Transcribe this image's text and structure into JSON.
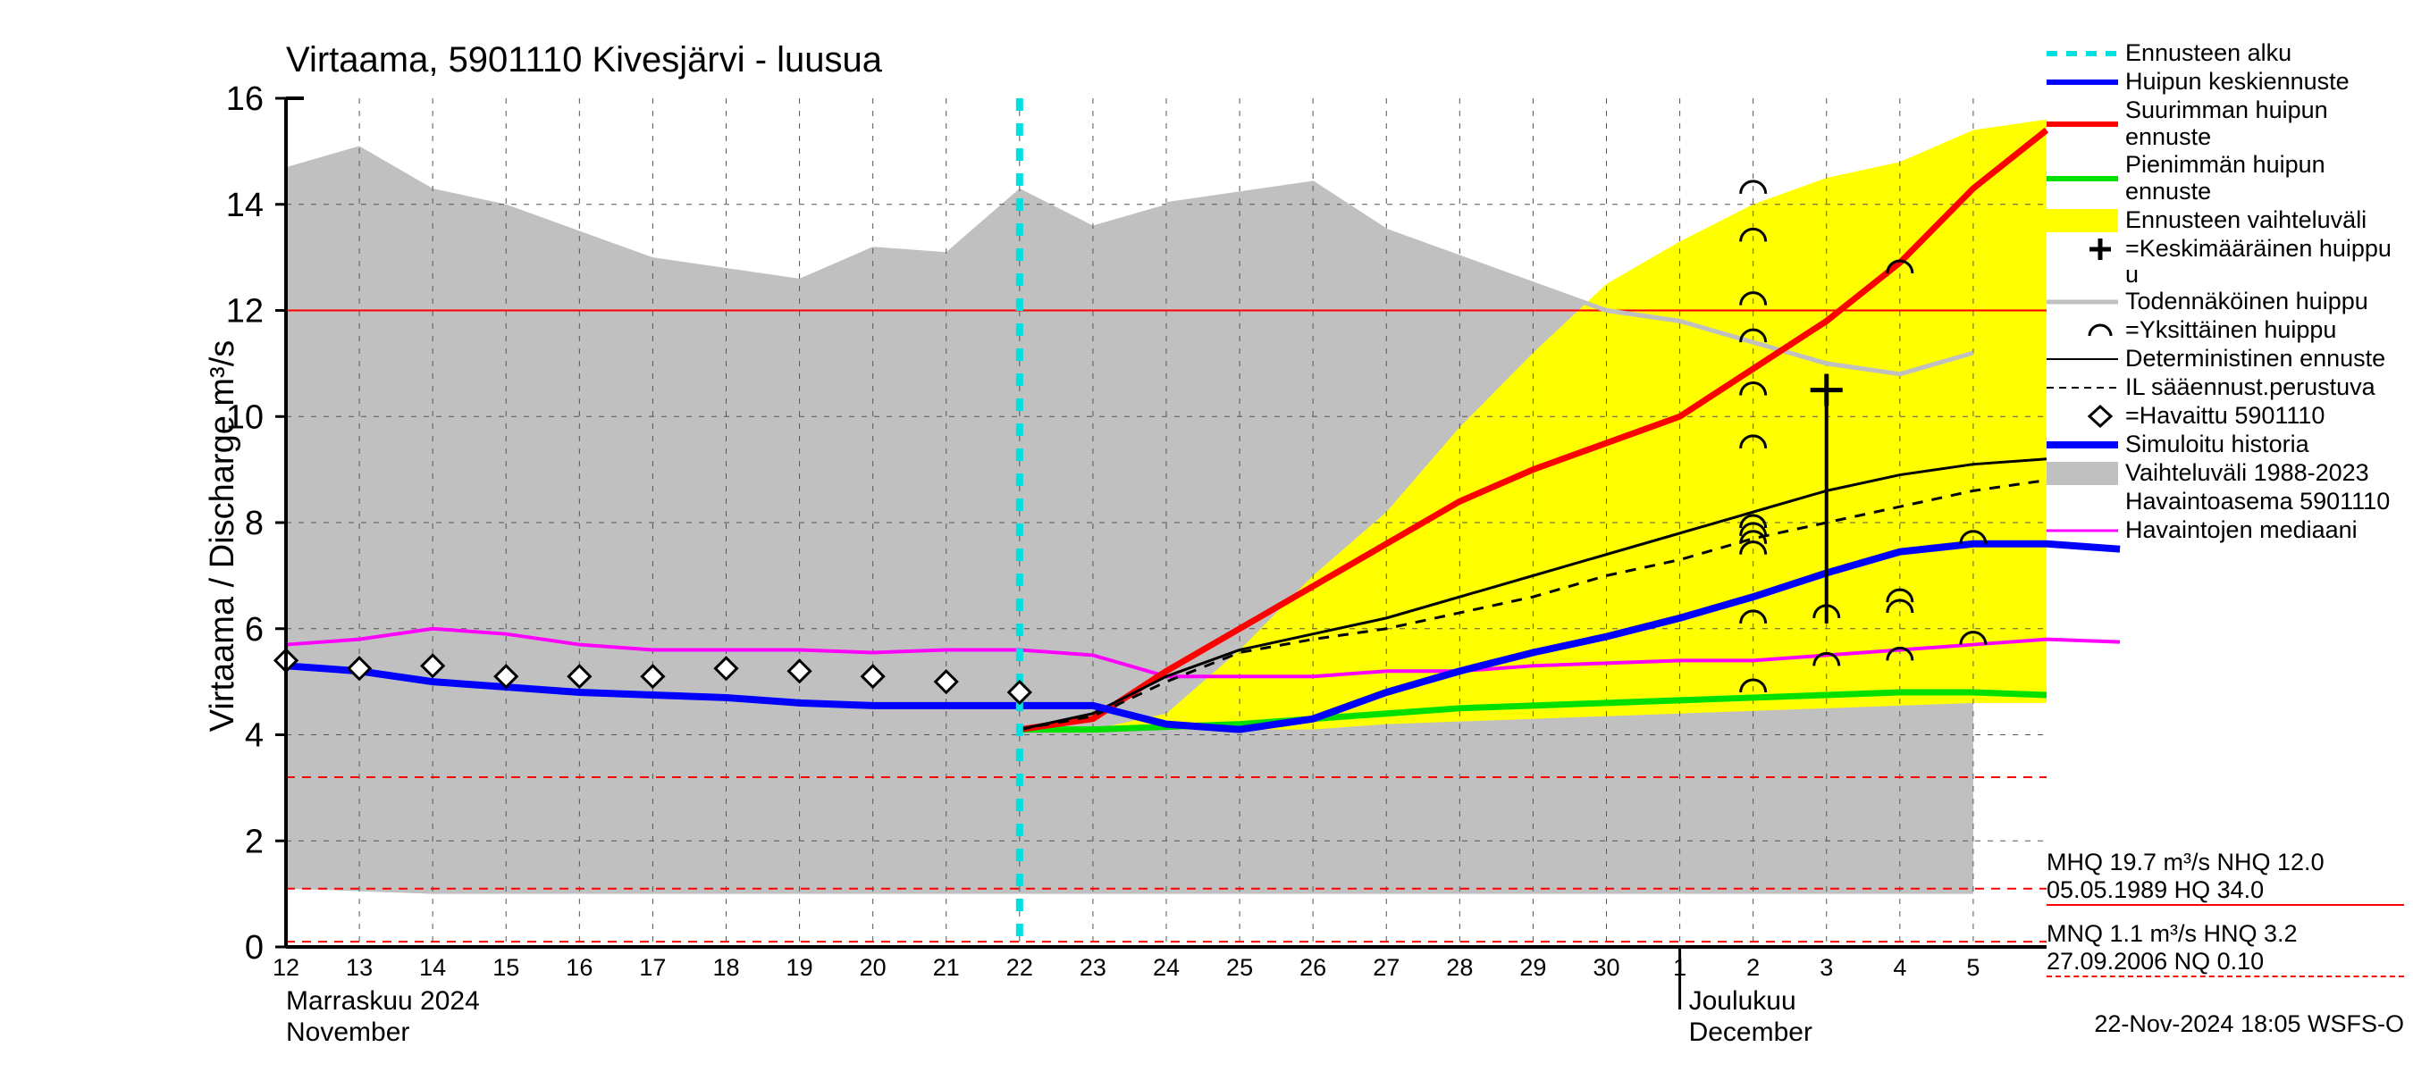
{
  "title": "Virtaama, 5901110 Kivesjärvi - luusua",
  "y_axis_label": "Virtaama / Discharge    m³/s",
  "footer": "22-Nov-2024 18:05 WSFS-O",
  "title_fontsize": 40,
  "axis_tick_fontsize": 38,
  "date_tick_fontsize": 27,
  "month_fontsize": 30,
  "legend_fontsize": 27,
  "colors": {
    "grid": "#000000",
    "background": "#ffffff",
    "gray_band": "#c0c0c0",
    "yellow_band": "#ffff00",
    "blue_thick": "#0000ff",
    "red_thick": "#ff0000",
    "green_thick": "#00e000",
    "magenta": "#ff00ff",
    "cyan": "#00e0e0",
    "light_gray_line": "#c0c0c0",
    "red_thin": "#ff0000",
    "black": "#000000"
  },
  "plot": {
    "x_days_start": 12,
    "x_days_end": 36,
    "ylim": [
      0,
      16
    ],
    "yticks": [
      0,
      2,
      4,
      6,
      8,
      10,
      12,
      14,
      16
    ],
    "day_labels": [
      "12",
      "13",
      "14",
      "15",
      "16",
      "17",
      "18",
      "19",
      "20",
      "21",
      "22",
      "23",
      "24",
      "25",
      "26",
      "27",
      "28",
      "29",
      "30",
      "1",
      "2",
      "3",
      "4",
      "5"
    ],
    "month_label_1_fi": "Marraskuu 2024",
    "month_label_1_en": "November",
    "month_label_2_fi": "Joulukuu",
    "month_label_2_en": "December",
    "month_sep_day": 31,
    "forecast_start_day": 22,
    "gray_upper": [
      14.7,
      15.1,
      14.3,
      14.0,
      13.5,
      13.0,
      12.8,
      12.6,
      13.2,
      13.1,
      14.3,
      13.6,
      14.0,
      14.2,
      14.4,
      13.5,
      13.0,
      12.5,
      12.0,
      11.8,
      11.4,
      11.0,
      10.8,
      11.2
    ],
    "gray_lower": [
      1.1,
      1.05,
      1.0,
      1.0,
      1.0,
      1.0,
      1.0,
      1.0,
      1.0,
      1.0,
      1.0,
      1.0,
      1.0,
      1.0,
      1.0,
      1.0,
      1.0,
      1.0,
      1.0,
      1.0,
      1.0,
      1.0,
      1.0,
      1.0
    ],
    "yellow_upper": [
      4.1,
      4.4,
      5.6,
      7.0,
      8.2,
      9.8,
      11.2,
      12.5,
      13.3,
      14.0,
      14.5,
      14.8,
      15.4,
      15.6
    ],
    "yellow_lower": [
      4.1,
      4.1,
      4.1,
      4.1,
      4.2,
      4.25,
      4.3,
      4.35,
      4.4,
      4.45,
      4.5,
      4.55,
      4.6,
      4.6
    ],
    "red_line": [
      4.1,
      4.3,
      5.2,
      6.0,
      6.8,
      7.6,
      8.4,
      9.0,
      9.5,
      10.0,
      10.9,
      11.8,
      12.9,
      14.3,
      15.4
    ],
    "blue_line": [
      5.3,
      5.2,
      5.0,
      4.9,
      4.8,
      4.75,
      4.7,
      4.6,
      4.55,
      4.55,
      4.55,
      4.55,
      4.2,
      4.1,
      4.3,
      4.8,
      5.2,
      5.55,
      5.85,
      6.2,
      6.6,
      7.05,
      7.45,
      7.6,
      7.6,
      7.5
    ],
    "green_line": [
      4.1,
      4.1,
      4.15,
      4.2,
      4.3,
      4.4,
      4.5,
      4.55,
      4.6,
      4.65,
      4.7,
      4.75,
      4.8,
      4.8,
      4.75
    ],
    "magenta_line": [
      5.7,
      5.8,
      6.0,
      5.9,
      5.7,
      5.6,
      5.6,
      5.6,
      5.55,
      5.6,
      5.6,
      5.5,
      5.1,
      5.1,
      5.1,
      5.2,
      5.2,
      5.3,
      5.35,
      5.4,
      5.4,
      5.5,
      5.6,
      5.7,
      5.8,
      5.75
    ],
    "black_solid": [
      4.1,
      4.4,
      5.1,
      5.6,
      5.9,
      6.2,
      6.6,
      7.0,
      7.4,
      7.8,
      8.2,
      8.6,
      8.9,
      9.1,
      9.2
    ],
    "black_dashed": [
      4.1,
      4.35,
      5.0,
      5.55,
      5.8,
      6.0,
      6.3,
      6.6,
      7.0,
      7.3,
      7.7,
      8.0,
      8.3,
      8.6,
      8.8
    ],
    "observed": [
      {
        "d": 12,
        "v": 5.4
      },
      {
        "d": 13,
        "v": 5.25
      },
      {
        "d": 14,
        "v": 5.3
      },
      {
        "d": 15,
        "v": 5.1
      },
      {
        "d": 16,
        "v": 5.1
      },
      {
        "d": 17,
        "v": 5.1
      },
      {
        "d": 18,
        "v": 5.25
      },
      {
        "d": 19,
        "v": 5.2
      },
      {
        "d": 20,
        "v": 5.1
      },
      {
        "d": 21,
        "v": 5.0
      },
      {
        "d": 22,
        "v": 4.8
      }
    ],
    "peak_arcs": [
      {
        "d": 32,
        "v": 14.2
      },
      {
        "d": 32,
        "v": 13.3
      },
      {
        "d": 32,
        "v": 12.1
      },
      {
        "d": 32,
        "v": 11.4
      },
      {
        "d": 32,
        "v": 10.4
      },
      {
        "d": 32,
        "v": 9.4
      },
      {
        "d": 32,
        "v": 7.9
      },
      {
        "d": 32,
        "v": 7.75
      },
      {
        "d": 32,
        "v": 7.6
      },
      {
        "d": 32,
        "v": 7.4
      },
      {
        "d": 32,
        "v": 6.1
      },
      {
        "d": 32,
        "v": 4.8
      },
      {
        "d": 33,
        "v": 5.3
      },
      {
        "d": 33,
        "v": 6.2
      },
      {
        "d": 34,
        "v": 12.7
      },
      {
        "d": 34,
        "v": 5.4
      },
      {
        "d": 34,
        "v": 6.3
      },
      {
        "d": 34,
        "v": 6.5
      },
      {
        "d": 35,
        "v": 5.7
      },
      {
        "d": 35,
        "v": 7.6
      }
    ],
    "plus_marker": {
      "d": 33,
      "v": 10.5
    },
    "plus_stem_to": 6.1,
    "mhq_line": 12.0,
    "mnq_line": 1.1,
    "nq_dash": 1.2,
    "extra_red_dash": 3.2
  },
  "legend": [
    {
      "key": "forecast_start",
      "label": "Ennusteen alku",
      "type": "dash",
      "color": "#00e0e0",
      "width": 6
    },
    {
      "key": "peak_mean",
      "label": "Huipun keskiennuste",
      "type": "line",
      "color": "#0000ff",
      "width": 6
    },
    {
      "key": "peak_max",
      "label": "Suurimman huipun ennuste",
      "type": "line",
      "color": "#ff0000",
      "width": 6
    },
    {
      "key": "peak_min",
      "label": "Pienimmän huipun ennuste",
      "type": "line",
      "color": "#00e000",
      "width": 6
    },
    {
      "key": "range",
      "label": "Ennusteen vaihteluväli",
      "type": "band",
      "color": "#ffff00"
    },
    {
      "key": "mean_peak_sym",
      "label": "=Keskimääräinen huippu",
      "type": "plus",
      "color": "#000000"
    },
    {
      "key": "prob_peak",
      "label": "Todennäköinen huippu",
      "type": "line",
      "color": "#c0c0c0",
      "width": 5
    },
    {
      "key": "single_peak",
      "label": "=Yksittäinen huippu",
      "type": "arc",
      "color": "#000000"
    },
    {
      "key": "det_forecast",
      "label": "Deterministinen ennuste",
      "type": "line",
      "color": "#000000",
      "width": 2
    },
    {
      "key": "il_forecast",
      "label": "IL sääennust.perustuva",
      "type": "sdash",
      "color": "#000000",
      "width": 2
    },
    {
      "key": "observed",
      "label": "=Havaittu 5901110",
      "type": "diamond",
      "color": "#000000"
    },
    {
      "key": "sim_hist",
      "label": "Simuloitu historia",
      "type": "line",
      "color": "#0000ff",
      "width": 8
    },
    {
      "key": "obs_range",
      "label": "Vaihteluväli 1988-2023",
      "type": "band",
      "color": "#c0c0c0"
    },
    {
      "key": "obs_station",
      "label": " Havaintoasema 5901110",
      "type": "text"
    },
    {
      "key": "obs_median",
      "label": "Havaintojen mediaani",
      "type": "line",
      "color": "#ff00ff",
      "width": 3
    }
  ],
  "stats": {
    "mhq_line1": "MHQ 19.7 m³/s NHQ 12.0",
    "mhq_line2": "05.05.1989 HQ 34.0",
    "mnq_line1": "MNQ  1.1 m³/s HNQ  3.2",
    "mnq_line2": "27.09.2006 NQ 0.10"
  }
}
